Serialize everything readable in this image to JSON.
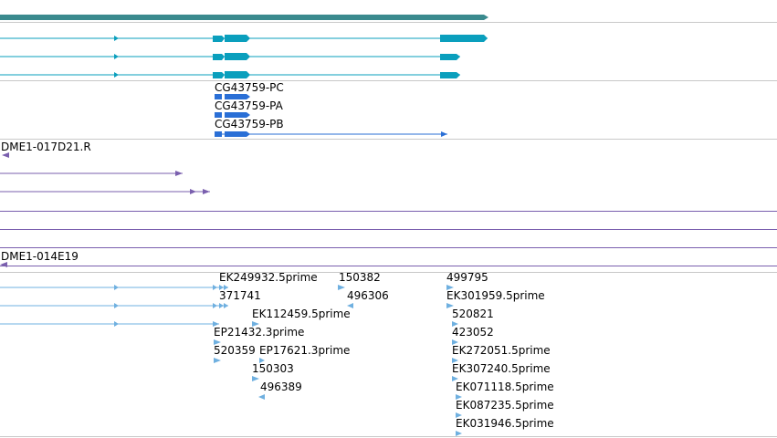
{
  "colors": {
    "gene": "#3a8a8e",
    "transcript": "#0a9fbd",
    "cds": "#2a6fd6",
    "clone": "#7a5fae",
    "est": "#6fb0e0",
    "separator": "#c8c8c8"
  },
  "cds_labels": [
    "CG43759-PC",
    "CG43759-PA",
    "CG43759-PB"
  ],
  "clone_labels": {
    "first": "DME1-017D21.R",
    "second": "DME1-014E19"
  },
  "est_labels": [
    "EK249932.5prime",
    "150382",
    "499795",
    "371741",
    "496306",
    "EK301959.5prime",
    "EK112459.5prime",
    "520821",
    "EP21432.3prime",
    "423052",
    "520359",
    "EP17621.3prime",
    "EK272051.5prime",
    "150303",
    "EK307240.5prime",
    "496389",
    "EK071118.5prime",
    "EK087235.5prime",
    "EK031946.5prime"
  ]
}
